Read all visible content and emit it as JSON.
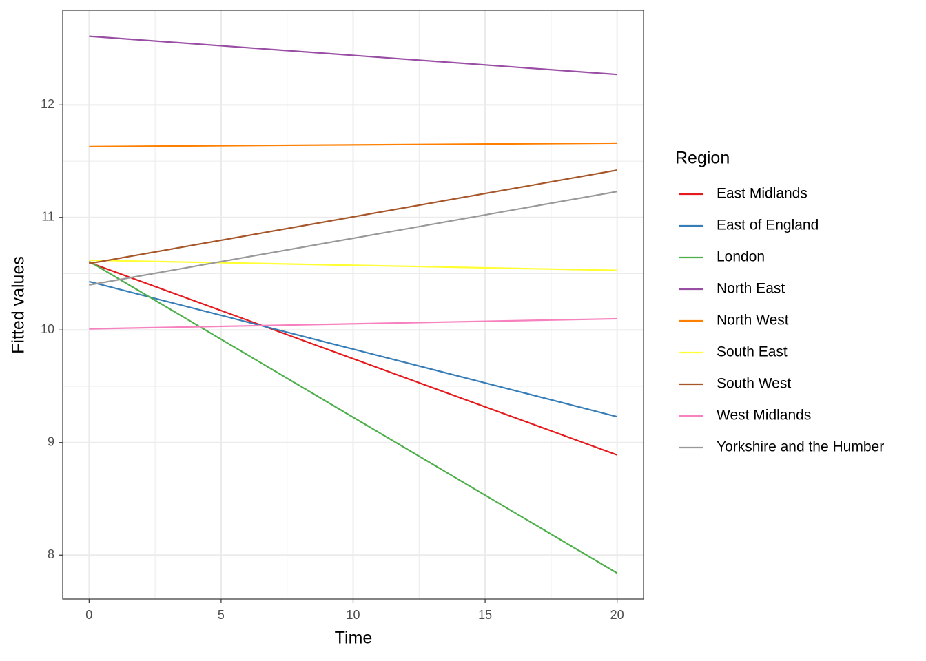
{
  "chart_data": {
    "type": "line",
    "x_label": "Time",
    "y_label": "Fitted values",
    "legend_title": "Region",
    "x": [
      0,
      20
    ],
    "xlim": [
      -1,
      21
    ],
    "xticks": [
      0,
      5,
      10,
      15,
      20
    ],
    "ylim": [
      7.61,
      12.84
    ],
    "yticks": [
      8,
      9,
      10,
      11,
      12
    ],
    "grid": true,
    "legend_position": "right",
    "series": [
      {
        "name": "East Midlands",
        "color": "#E41A1C",
        "values": [
          10.6,
          8.89
        ]
      },
      {
        "name": "East of England",
        "color": "#377EB8",
        "values": [
          10.43,
          9.23
        ]
      },
      {
        "name": "London",
        "color": "#4DAF4A",
        "values": [
          10.61,
          7.84
        ]
      },
      {
        "name": "North East",
        "color": "#984EA3",
        "values": [
          12.61,
          12.27
        ]
      },
      {
        "name": "North West",
        "color": "#FF7F00",
        "values": [
          11.63,
          11.66
        ]
      },
      {
        "name": "South East",
        "color": "#FFFF33",
        "values": [
          10.62,
          10.53
        ]
      },
      {
        "name": "South West",
        "color": "#A65628",
        "values": [
          10.59,
          11.42
        ]
      },
      {
        "name": "West Midlands",
        "color": "#F781BF",
        "values": [
          10.01,
          10.1
        ]
      },
      {
        "name": "Yorkshire and the Humber",
        "color": "#999999",
        "values": [
          10.4,
          11.23
        ]
      }
    ]
  }
}
